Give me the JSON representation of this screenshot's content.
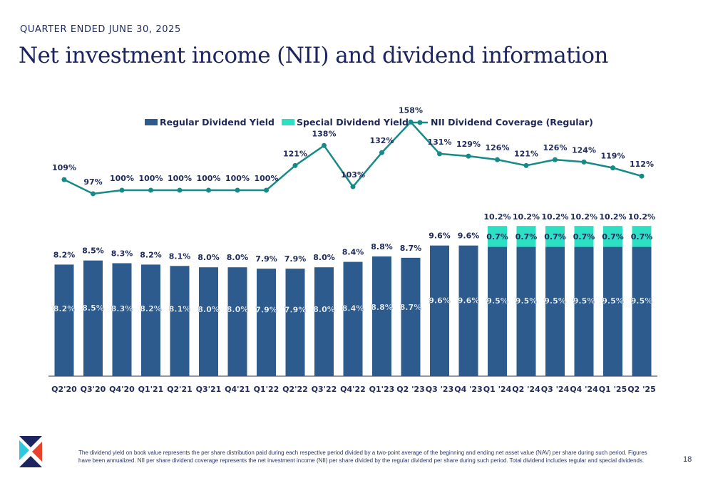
{
  "header": {
    "period": "QUARTER ENDED JUNE 30, 2025",
    "title": "Net investment income (NII) and dividend information"
  },
  "colors": {
    "regular": "#2d5b8e",
    "special": "#2de0c3",
    "coverage": "#168a87",
    "axis": "#2a2f4a",
    "text": "#1f2a5a"
  },
  "chart_data": {
    "type": "bar",
    "stacked": true,
    "categories": [
      "Q2'20",
      "Q3'20",
      "Q4'20",
      "Q1'21",
      "Q2'21",
      "Q3'21",
      "Q4'21",
      "Q1'22",
      "Q2'22",
      "Q3'22",
      "Q4'22",
      "Q1'23",
      "Q2 '23",
      "Q3 '23",
      "Q4 '23",
      "Q1 '24",
      "Q2 '24",
      "Q3 '24",
      "Q4 '24",
      "Q1 '25",
      "Q2 '25"
    ],
    "series": [
      {
        "name": "Regular Dividend Yield",
        "type": "bar",
        "values": [
          8.2,
          8.5,
          8.3,
          8.2,
          8.1,
          8.0,
          8.0,
          7.9,
          7.9,
          8.0,
          8.4,
          8.8,
          8.7,
          9.6,
          9.6,
          9.5,
          9.5,
          9.5,
          9.5,
          9.5,
          9.5
        ],
        "labels": [
          "8.2%",
          "8.5%",
          "8.3%",
          "8.2%",
          "8.1%",
          "8.0%",
          "8.0%",
          "7.9%",
          "7.9%",
          "8.0%",
          "8.4%",
          "8.8%",
          "8.7%",
          "9.6%",
          "9.6%",
          "9.5%",
          "9.5%",
          "9.5%",
          "9.5%",
          "9.5%",
          "9.5%"
        ]
      },
      {
        "name": "Special Dividend Yield",
        "type": "bar",
        "values": [
          0,
          0,
          0,
          0,
          0,
          0,
          0,
          0,
          0,
          0,
          0,
          0,
          0,
          0,
          0,
          0.7,
          0.7,
          0.7,
          0.7,
          0.7,
          0.7
        ],
        "labels": [
          "",
          "",
          "",
          "",
          "",
          "",
          "",
          "",
          "",
          "",
          "",
          "",
          "",
          "",
          "",
          "0.7%",
          "0.7%",
          "0.7%",
          "0.7%",
          "0.7%",
          "0.7%"
        ]
      },
      {
        "name": "NII Dividend Coverage (Regular)",
        "type": "line",
        "values": [
          109,
          97,
          100,
          100,
          100,
          100,
          100,
          100,
          121,
          138,
          103,
          132,
          158,
          131,
          129,
          126,
          121,
          126,
          124,
          119,
          112
        ],
        "labels": [
          "109%",
          "97%",
          "100%",
          "100%",
          "100%",
          "100%",
          "100%",
          "100%",
          "121%",
          "138%",
          "103%",
          "132%",
          "158%",
          "131%",
          "129%",
          "126%",
          "121%",
          "126%",
          "124%",
          "119%",
          "112%"
        ]
      }
    ],
    "total_labels": [
      "8.2%",
      "8.5%",
      "8.3%",
      "8.2%",
      "8.1%",
      "8.0%",
      "8.0%",
      "7.9%",
      "7.9%",
      "8.0%",
      "8.4%",
      "8.8%",
      "8.7%",
      "9.6%",
      "9.6%",
      "10.2%",
      "10.2%",
      "10.2%",
      "10.2%",
      "10.2%",
      "10.2%"
    ],
    "legend_position": "top-center",
    "grid": false
  },
  "footnote": "The dividend yield on book value represents the per share distribution paid during each respective period divided by a two-point average of the beginning and ending net asset value (NAV) per share during such period. Figures have been annualized. NII per share dividend coverage represents the net investment income (NII) per share divided by the regular dividend per share during such period. Total dividend includes regular and special dividends.",
  "page_number": "18"
}
